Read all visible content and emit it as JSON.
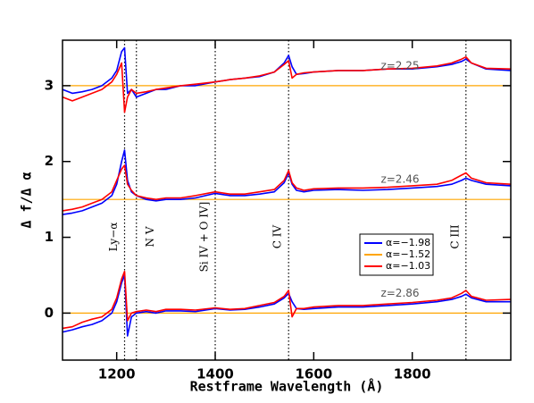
{
  "chart_data": {
    "type": "line",
    "xlabel": "Restframe Wavelength (Å)",
    "ylabel": "Δ f/Δ α",
    "xlim": [
      1090,
      2000
    ],
    "ylim": [
      -0.62,
      3.6
    ],
    "xticks": [
      1200,
      1400,
      1600,
      1800
    ],
    "yticks": [
      0,
      1,
      2,
      3
    ],
    "x": [
      1090,
      1110,
      1130,
      1150,
      1170,
      1190,
      1200,
      1210,
      1216,
      1222,
      1230,
      1240,
      1260,
      1280,
      1300,
      1330,
      1360,
      1400,
      1430,
      1460,
      1490,
      1520,
      1540,
      1549,
      1556,
      1565,
      1580,
      1600,
      1650,
      1700,
      1750,
      1800,
      1850,
      1880,
      1900,
      1909,
      1920,
      1950,
      2000
    ],
    "groups": [
      "z=2.25",
      "z=2.46",
      "z=2.86"
    ],
    "lines": [
      {
        "x": 1216,
        "label": "Ly−α"
      },
      {
        "x": 1240,
        "label": "N V"
      },
      {
        "x": 1400,
        "label": "Si IV + O IV]"
      },
      {
        "x": 1549,
        "label": "C IV"
      },
      {
        "x": 1909,
        "label": "C III"
      }
    ],
    "series": [
      {
        "name": "α=−1.98",
        "color": "#0000ff",
        "values": [
          [
            2.95,
            2.9,
            2.92,
            2.95,
            3.0,
            3.1,
            3.2,
            3.45,
            3.5,
            2.9,
            2.95,
            2.85,
            2.9,
            2.95,
            2.95,
            3.0,
            3.0,
            3.05,
            3.08,
            3.1,
            3.12,
            3.18,
            3.3,
            3.4,
            3.25,
            3.15,
            3.16,
            3.18,
            3.2,
            3.2,
            3.22,
            3.22,
            3.25,
            3.28,
            3.32,
            3.35,
            3.3,
            3.22,
            3.2
          ],
          [
            1.3,
            1.32,
            1.35,
            1.4,
            1.45,
            1.55,
            1.7,
            2.0,
            2.15,
            1.75,
            1.6,
            1.55,
            1.5,
            1.48,
            1.5,
            1.5,
            1.52,
            1.58,
            1.55,
            1.55,
            1.57,
            1.6,
            1.72,
            1.85,
            1.7,
            1.62,
            1.6,
            1.62,
            1.63,
            1.62,
            1.63,
            1.65,
            1.67,
            1.7,
            1.75,
            1.78,
            1.75,
            1.7,
            1.68
          ],
          [
            -0.25,
            -0.22,
            -0.18,
            -0.15,
            -0.1,
            0.0,
            0.15,
            0.4,
            0.5,
            -0.3,
            -0.05,
            0.0,
            0.02,
            0.0,
            0.03,
            0.03,
            0.02,
            0.06,
            0.04,
            0.05,
            0.08,
            0.12,
            0.2,
            0.26,
            0.15,
            0.06,
            0.05,
            0.06,
            0.08,
            0.08,
            0.1,
            0.12,
            0.15,
            0.18,
            0.22,
            0.25,
            0.2,
            0.15,
            0.15
          ]
        ]
      },
      {
        "name": "α=−1.52",
        "color": "#ffa500",
        "values": [
          [
            3,
            3,
            3,
            3,
            3,
            3,
            3,
            3,
            3,
            3,
            3,
            3,
            3,
            3,
            3,
            3,
            3,
            3,
            3,
            3,
            3,
            3,
            3,
            3,
            3,
            3,
            3,
            3,
            3,
            3,
            3,
            3,
            3,
            3,
            3,
            3,
            3,
            3,
            3
          ],
          [
            1.5,
            1.5,
            1.5,
            1.5,
            1.5,
            1.5,
            1.5,
            1.5,
            1.5,
            1.5,
            1.5,
            1.5,
            1.5,
            1.5,
            1.5,
            1.5,
            1.5,
            1.5,
            1.5,
            1.5,
            1.5,
            1.5,
            1.5,
            1.5,
            1.5,
            1.5,
            1.5,
            1.5,
            1.5,
            1.5,
            1.5,
            1.5,
            1.5,
            1.5,
            1.5,
            1.5,
            1.5,
            1.5,
            1.5
          ],
          [
            0,
            0,
            0,
            0,
            0,
            0,
            0,
            0,
            0,
            0,
            0,
            0,
            0,
            0,
            0,
            0,
            0,
            0,
            0,
            0,
            0,
            0,
            0,
            0,
            0,
            0,
            0,
            0,
            0,
            0,
            0,
            0,
            0,
            0,
            0,
            0,
            0,
            0,
            0
          ]
        ]
      },
      {
        "name": "α=−1.03",
        "color": "#ff0000",
        "values": [
          [
            2.85,
            2.8,
            2.85,
            2.9,
            2.95,
            3.05,
            3.15,
            3.3,
            2.65,
            2.85,
            2.95,
            2.9,
            2.92,
            2.95,
            2.97,
            3.0,
            3.02,
            3.05,
            3.08,
            3.1,
            3.13,
            3.18,
            3.28,
            3.33,
            3.1,
            3.15,
            3.17,
            3.18,
            3.2,
            3.2,
            3.22,
            3.23,
            3.26,
            3.3,
            3.35,
            3.38,
            3.3,
            3.23,
            3.22
          ],
          [
            1.35,
            1.37,
            1.4,
            1.45,
            1.5,
            1.6,
            1.75,
            1.9,
            1.95,
            1.7,
            1.62,
            1.55,
            1.52,
            1.5,
            1.52,
            1.52,
            1.55,
            1.6,
            1.57,
            1.57,
            1.6,
            1.63,
            1.75,
            1.88,
            1.72,
            1.65,
            1.62,
            1.64,
            1.65,
            1.65,
            1.66,
            1.68,
            1.7,
            1.75,
            1.82,
            1.85,
            1.78,
            1.72,
            1.7
          ],
          [
            -0.2,
            -0.18,
            -0.12,
            -0.08,
            -0.05,
            0.05,
            0.2,
            0.45,
            0.55,
            -0.1,
            0.0,
            0.02,
            0.04,
            0.02,
            0.05,
            0.05,
            0.04,
            0.07,
            0.05,
            0.06,
            0.1,
            0.14,
            0.22,
            0.3,
            -0.05,
            0.06,
            0.06,
            0.08,
            0.1,
            0.1,
            0.12,
            0.14,
            0.17,
            0.2,
            0.26,
            0.3,
            0.22,
            0.17,
            0.18
          ]
        ]
      }
    ]
  }
}
